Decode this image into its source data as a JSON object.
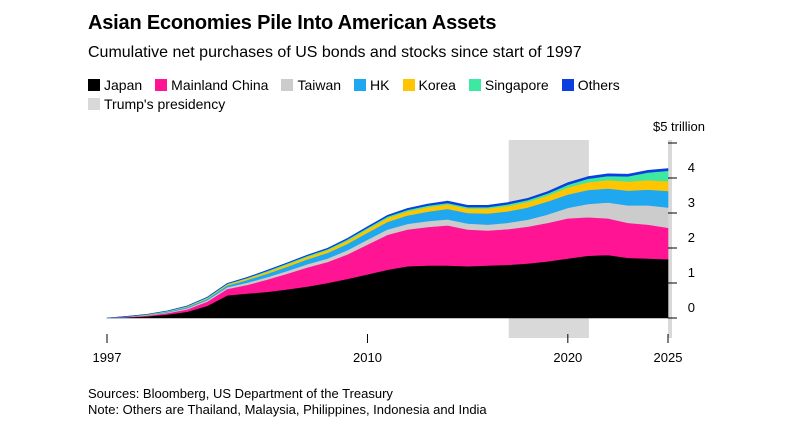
{
  "chart_data": {
    "type": "area",
    "title": "Asian Economies Pile Into American Assets",
    "subtitle": "Cumulative net purchases of US bonds and stocks since start of 1997",
    "ylabel": "",
    "xlabel": "",
    "unit_label": "$5 trillion",
    "ylim": [
      -0.15,
      5
    ],
    "xlim": [
      1997,
      2025
    ],
    "y_ticks": [
      0,
      1,
      2,
      3,
      4
    ],
    "x_ticks": [
      1997,
      2010,
      2020,
      2025
    ],
    "x": [
      1997,
      1998,
      1999,
      2000,
      2001,
      2002,
      2003,
      2004,
      2005,
      2006,
      2007,
      2008,
      2009,
      2010,
      2011,
      2012,
      2013,
      2014,
      2015,
      2016,
      2017,
      2018,
      2019,
      2020,
      2021,
      2022,
      2023,
      2024,
      2025
    ],
    "series": [
      {
        "name": "Japan",
        "color": "#000000",
        "values": [
          0,
          0.02,
          0.05,
          0.1,
          0.18,
          0.35,
          0.65,
          0.7,
          0.75,
          0.82,
          0.9,
          1.0,
          1.12,
          1.25,
          1.38,
          1.48,
          1.5,
          1.5,
          1.48,
          1.5,
          1.52,
          1.56,
          1.62,
          1.7,
          1.78,
          1.8,
          1.72,
          1.7,
          1.68
        ]
      },
      {
        "name": "Mainland China",
        "color": "#ff1493",
        "values": [
          0,
          0.01,
          0.02,
          0.04,
          0.07,
          0.12,
          0.18,
          0.25,
          0.35,
          0.45,
          0.55,
          0.6,
          0.7,
          0.85,
          1.0,
          1.05,
          1.1,
          1.15,
          1.05,
          1.0,
          1.02,
          1.05,
          1.1,
          1.15,
          1.1,
          1.05,
          1.0,
          0.97,
          0.9
        ]
      },
      {
        "name": "Taiwan",
        "color": "#cccccc",
        "values": [
          0,
          0.005,
          0.01,
          0.02,
          0.03,
          0.04,
          0.05,
          0.06,
          0.07,
          0.08,
          0.09,
          0.1,
          0.12,
          0.14,
          0.15,
          0.16,
          0.17,
          0.17,
          0.17,
          0.17,
          0.18,
          0.2,
          0.24,
          0.3,
          0.38,
          0.45,
          0.5,
          0.55,
          0.58
        ]
      },
      {
        "name": "HK",
        "color": "#1fa7ef",
        "values": [
          0,
          0.005,
          0.01,
          0.02,
          0.03,
          0.04,
          0.05,
          0.08,
          0.1,
          0.12,
          0.14,
          0.16,
          0.18,
          0.2,
          0.22,
          0.24,
          0.27,
          0.3,
          0.3,
          0.32,
          0.33,
          0.35,
          0.37,
          0.38,
          0.4,
          0.4,
          0.42,
          0.45,
          0.47
        ]
      },
      {
        "name": "Korea",
        "color": "#ffc500",
        "values": [
          0,
          0.005,
          0.01,
          0.01,
          0.02,
          0.02,
          0.03,
          0.04,
          0.05,
          0.06,
          0.07,
          0.08,
          0.09,
          0.1,
          0.11,
          0.12,
          0.13,
          0.13,
          0.13,
          0.14,
          0.15,
          0.16,
          0.17,
          0.2,
          0.22,
          0.24,
          0.26,
          0.27,
          0.28
        ]
      },
      {
        "name": "Singapore",
        "color": "#3ee8a0",
        "values": [
          0,
          0.002,
          0.005,
          0.01,
          0.01,
          0.02,
          0.02,
          0.02,
          0.03,
          0.03,
          0.03,
          0.03,
          0.04,
          0.04,
          0.04,
          0.04,
          0.04,
          0.04,
          0.04,
          0.04,
          0.05,
          0.05,
          0.06,
          0.08,
          0.1,
          0.12,
          0.15,
          0.22,
          0.3
        ]
      },
      {
        "name": "Others",
        "color": "#0b3fe0",
        "values": [
          0,
          0.001,
          0.002,
          0.004,
          0.005,
          0.008,
          0.01,
          0.012,
          0.015,
          0.018,
          0.02,
          0.022,
          0.025,
          0.03,
          0.035,
          0.04,
          0.045,
          0.05,
          0.05,
          0.05,
          0.05,
          0.05,
          0.055,
          0.06,
          0.06,
          0.06,
          0.06,
          0.06,
          0.06
        ]
      }
    ],
    "highlights": [
      {
        "name": "Trump's presidency",
        "color": "#d9d9d9",
        "start": 2017.05,
        "end": 2021.05
      },
      {
        "name": "Trump's presidency",
        "color": "#d9d9d9",
        "start": 2025.0,
        "end": 2025.3
      }
    ],
    "legend": [
      {
        "label": "Japan",
        "color": "#000000"
      },
      {
        "label": "Mainland China",
        "color": "#ff1493"
      },
      {
        "label": "Taiwan",
        "color": "#cccccc"
      },
      {
        "label": "HK",
        "color": "#1fa7ef"
      },
      {
        "label": "Korea",
        "color": "#ffc500"
      },
      {
        "label": "Singapore",
        "color": "#3ee8a0"
      },
      {
        "label": "Others",
        "color": "#0b3fe0"
      },
      {
        "label": "Trump's presidency",
        "color": "#d9d9d9"
      }
    ]
  },
  "footer": {
    "sources": "Sources: Bloomberg, US Department of the Treasury",
    "note": "Note: Others are Thailand, Malaysia, Philippines, Indonesia and India"
  }
}
